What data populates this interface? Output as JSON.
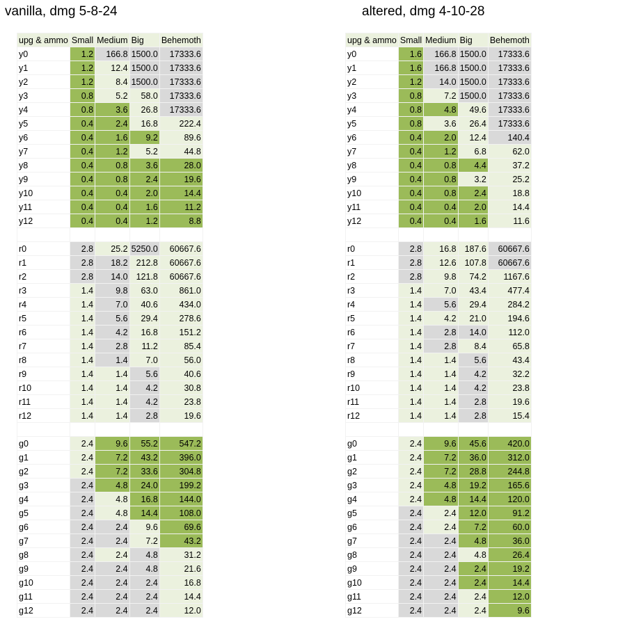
{
  "colors": {
    "G": "#9bbb59",
    "L": "#ebf1de",
    "D": "#d9d9d9",
    "W": "#ffffff"
  },
  "tables": [
    {
      "id": "vanilla",
      "title": "vanilla, dmg 5-8-24",
      "headers": [
        "upg & ammo",
        "Small",
        "Medium",
        "Big",
        "Behemoth"
      ],
      "rows": [
        {
          "label": "y0",
          "vals": [
            "1.2",
            "166.8",
            "1500.0",
            "17333.6"
          ],
          "c": "GDDD"
        },
        {
          "label": "y1",
          "vals": [
            "1.2",
            "12.4",
            "1500.0",
            "17333.6"
          ],
          "c": "GLDD"
        },
        {
          "label": "y2",
          "vals": [
            "1.2",
            "8.4",
            "1500.0",
            "17333.6"
          ],
          "c": "GLDD"
        },
        {
          "label": "y3",
          "vals": [
            "0.8",
            "5.2",
            "58.0",
            "17333.6"
          ],
          "c": "GLLD"
        },
        {
          "label": "y4",
          "vals": [
            "0.8",
            "3.6",
            "26.8",
            "17333.6"
          ],
          "c": "GGLD"
        },
        {
          "label": "y5",
          "vals": [
            "0.4",
            "2.4",
            "16.8",
            "222.4"
          ],
          "c": "GGLL"
        },
        {
          "label": "y6",
          "vals": [
            "0.4",
            "1.6",
            "9.2",
            "89.6"
          ],
          "c": "GGGL"
        },
        {
          "label": "y7",
          "vals": [
            "0.4",
            "1.2",
            "5.2",
            "44.8"
          ],
          "c": "GGLL"
        },
        {
          "label": "y8",
          "vals": [
            "0.4",
            "0.8",
            "3.6",
            "28.0"
          ],
          "c": "GGGG"
        },
        {
          "label": "y9",
          "vals": [
            "0.4",
            "0.8",
            "2.4",
            "19.6"
          ],
          "c": "GGGG"
        },
        {
          "label": "y10",
          "vals": [
            "0.4",
            "0.4",
            "2.0",
            "14.4"
          ],
          "c": "GGGG"
        },
        {
          "label": "y11",
          "vals": [
            "0.4",
            "0.4",
            "1.6",
            "11.2"
          ],
          "c": "GGGG"
        },
        {
          "label": "y12",
          "vals": [
            "0.4",
            "0.4",
            "1.2",
            "8.8"
          ],
          "c": "GGGG"
        },
        null,
        {
          "label": "r0",
          "vals": [
            "2.8",
            "25.2",
            "5250.0",
            "60667.6"
          ],
          "c": "DLDL"
        },
        {
          "label": "r1",
          "vals": [
            "2.8",
            "18.2",
            "212.8",
            "60667.6"
          ],
          "c": "DDLL"
        },
        {
          "label": "r2",
          "vals": [
            "2.8",
            "14.0",
            "121.8",
            "60667.6"
          ],
          "c": "DDLL"
        },
        {
          "label": "r3",
          "vals": [
            "1.4",
            "9.8",
            "63.0",
            "861.0"
          ],
          "c": "LDLL"
        },
        {
          "label": "r4",
          "vals": [
            "1.4",
            "7.0",
            "40.6",
            "434.0"
          ],
          "c": "LDLL"
        },
        {
          "label": "r5",
          "vals": [
            "1.4",
            "5.6",
            "29.4",
            "278.6"
          ],
          "c": "LDLL"
        },
        {
          "label": "r6",
          "vals": [
            "1.4",
            "4.2",
            "16.8",
            "151.2"
          ],
          "c": "LDLL"
        },
        {
          "label": "r7",
          "vals": [
            "1.4",
            "2.8",
            "11.2",
            "85.4"
          ],
          "c": "LDLL"
        },
        {
          "label": "r8",
          "vals": [
            "1.4",
            "1.4",
            "7.0",
            "56.0"
          ],
          "c": "LDLL"
        },
        {
          "label": "r9",
          "vals": [
            "1.4",
            "1.4",
            "5.6",
            "40.6"
          ],
          "c": "LLDL"
        },
        {
          "label": "r10",
          "vals": [
            "1.4",
            "1.4",
            "4.2",
            "30.8"
          ],
          "c": "LLDL"
        },
        {
          "label": "r11",
          "vals": [
            "1.4",
            "1.4",
            "4.2",
            "23.8"
          ],
          "c": "LLDL"
        },
        {
          "label": "r12",
          "vals": [
            "1.4",
            "1.4",
            "2.8",
            "19.6"
          ],
          "c": "LLDL"
        },
        null,
        {
          "label": "g0",
          "vals": [
            "2.4",
            "9.6",
            "55.2",
            "547.2"
          ],
          "c": "LGGG"
        },
        {
          "label": "g1",
          "vals": [
            "2.4",
            "7.2",
            "43.2",
            "396.0"
          ],
          "c": "LGGG"
        },
        {
          "label": "g2",
          "vals": [
            "2.4",
            "7.2",
            "33.6",
            "304.8"
          ],
          "c": "LGGG"
        },
        {
          "label": "g3",
          "vals": [
            "2.4",
            "4.8",
            "24.0",
            "199.2"
          ],
          "c": "DGGG"
        },
        {
          "label": "g4",
          "vals": [
            "2.4",
            "4.8",
            "16.8",
            "144.0"
          ],
          "c": "DLGG"
        },
        {
          "label": "g5",
          "vals": [
            "2.4",
            "4.8",
            "14.4",
            "108.0"
          ],
          "c": "DLGG"
        },
        {
          "label": "g6",
          "vals": [
            "2.4",
            "2.4",
            "9.6",
            "69.6"
          ],
          "c": "DDLG"
        },
        {
          "label": "g7",
          "vals": [
            "2.4",
            "2.4",
            "7.2",
            "43.2"
          ],
          "c": "DDLG"
        },
        {
          "label": "g8",
          "vals": [
            "2.4",
            "2.4",
            "4.8",
            "31.2"
          ],
          "c": "DLDL"
        },
        {
          "label": "g9",
          "vals": [
            "2.4",
            "2.4",
            "4.8",
            "21.6"
          ],
          "c": "DDDL"
        },
        {
          "label": "g10",
          "vals": [
            "2.4",
            "2.4",
            "2.4",
            "16.8"
          ],
          "c": "DDDL"
        },
        {
          "label": "g11",
          "vals": [
            "2.4",
            "2.4",
            "2.4",
            "14.4"
          ],
          "c": "DDDL"
        },
        {
          "label": "g12",
          "vals": [
            "2.4",
            "2.4",
            "2.4",
            "12.0"
          ],
          "c": "DDDL"
        }
      ]
    },
    {
      "id": "altered",
      "title": "altered, dmg 4-10-28",
      "headers": [
        "upg & ammo",
        "Small",
        "Medium",
        "Big",
        "Behemoth"
      ],
      "rows": [
        {
          "label": "y0",
          "vals": [
            "1.6",
            "166.8",
            "1500.0",
            "17333.6"
          ],
          "c": "GDDD"
        },
        {
          "label": "y1",
          "vals": [
            "1.6",
            "166.8",
            "1500.0",
            "17333.6"
          ],
          "c": "GDDD"
        },
        {
          "label": "y2",
          "vals": [
            "1.2",
            "14.0",
            "1500.0",
            "17333.6"
          ],
          "c": "GDDD"
        },
        {
          "label": "y3",
          "vals": [
            "0.8",
            "7.2",
            "1500.0",
            "17333.6"
          ],
          "c": "GLDD"
        },
        {
          "label": "y4",
          "vals": [
            "0.8",
            "4.8",
            "49.6",
            "17333.6"
          ],
          "c": "GGLD"
        },
        {
          "label": "y5",
          "vals": [
            "0.8",
            "3.6",
            "26.4",
            "17333.6"
          ],
          "c": "GLLD"
        },
        {
          "label": "y6",
          "vals": [
            "0.4",
            "2.0",
            "12.4",
            "140.4"
          ],
          "c": "GGLD"
        },
        {
          "label": "y7",
          "vals": [
            "0.4",
            "1.2",
            "6.8",
            "62.0"
          ],
          "c": "GGLL"
        },
        {
          "label": "y8",
          "vals": [
            "0.4",
            "0.8",
            "4.4",
            "37.2"
          ],
          "c": "GGGL"
        },
        {
          "label": "y9",
          "vals": [
            "0.4",
            "0.8",
            "3.2",
            "25.2"
          ],
          "c": "GGLL"
        },
        {
          "label": "y10",
          "vals": [
            "0.4",
            "0.8",
            "2.4",
            "18.8"
          ],
          "c": "GGGL"
        },
        {
          "label": "y11",
          "vals": [
            "0.4",
            "0.4",
            "2.0",
            "14.4"
          ],
          "c": "GGGL"
        },
        {
          "label": "y12",
          "vals": [
            "0.4",
            "0.4",
            "1.6",
            "11.6"
          ],
          "c": "GGGL"
        },
        null,
        {
          "label": "r0",
          "vals": [
            "2.8",
            "16.8",
            "187.6",
            "60667.6"
          ],
          "c": "DLLD"
        },
        {
          "label": "r1",
          "vals": [
            "2.8",
            "12.6",
            "107.8",
            "60667.6"
          ],
          "c": "DLLD"
        },
        {
          "label": "r2",
          "vals": [
            "2.8",
            "9.8",
            "74.2",
            "1167.6"
          ],
          "c": "DLLL"
        },
        {
          "label": "r3",
          "vals": [
            "1.4",
            "7.0",
            "43.4",
            "477.4"
          ],
          "c": "LLLL"
        },
        {
          "label": "r4",
          "vals": [
            "1.4",
            "5.6",
            "29.4",
            "284.2"
          ],
          "c": "LDLL"
        },
        {
          "label": "r5",
          "vals": [
            "1.4",
            "4.2",
            "21.0",
            "194.6"
          ],
          "c": "LLLL"
        },
        {
          "label": "r6",
          "vals": [
            "1.4",
            "2.8",
            "14.0",
            "112.0"
          ],
          "c": "LDDL"
        },
        {
          "label": "r7",
          "vals": [
            "1.4",
            "2.8",
            "8.4",
            "65.8"
          ],
          "c": "LDLL"
        },
        {
          "label": "r8",
          "vals": [
            "1.4",
            "1.4",
            "5.6",
            "43.4"
          ],
          "c": "LLDL"
        },
        {
          "label": "r9",
          "vals": [
            "1.4",
            "1.4",
            "4.2",
            "32.2"
          ],
          "c": "LLDL"
        },
        {
          "label": "r10",
          "vals": [
            "1.4",
            "1.4",
            "4.2",
            "23.8"
          ],
          "c": "LLDL"
        },
        {
          "label": "r11",
          "vals": [
            "1.4",
            "1.4",
            "2.8",
            "19.6"
          ],
          "c": "LLDL"
        },
        {
          "label": "r12",
          "vals": [
            "1.4",
            "1.4",
            "2.8",
            "15.4"
          ],
          "c": "LLDL"
        },
        null,
        {
          "label": "g0",
          "vals": [
            "2.4",
            "9.6",
            "45.6",
            "420.0"
          ],
          "c": "LGGG"
        },
        {
          "label": "g1",
          "vals": [
            "2.4",
            "7.2",
            "36.0",
            "312.0"
          ],
          "c": "LGGG"
        },
        {
          "label": "g2",
          "vals": [
            "2.4",
            "7.2",
            "28.8",
            "244.8"
          ],
          "c": "LGGG"
        },
        {
          "label": "g3",
          "vals": [
            "2.4",
            "4.8",
            "19.2",
            "165.6"
          ],
          "c": "LGGG"
        },
        {
          "label": "g4",
          "vals": [
            "2.4",
            "4.8",
            "14.4",
            "120.0"
          ],
          "c": "LGGG"
        },
        {
          "label": "g5",
          "vals": [
            "2.4",
            "2.4",
            "12.0",
            "91.2"
          ],
          "c": "DLGG"
        },
        {
          "label": "g6",
          "vals": [
            "2.4",
            "2.4",
            "7.2",
            "60.0"
          ],
          "c": "DLGG"
        },
        {
          "label": "g7",
          "vals": [
            "2.4",
            "2.4",
            "4.8",
            "36.0"
          ],
          "c": "DDGG"
        },
        {
          "label": "g8",
          "vals": [
            "2.4",
            "2.4",
            "4.8",
            "26.4"
          ],
          "c": "DDLG"
        },
        {
          "label": "g9",
          "vals": [
            "2.4",
            "2.4",
            "2.4",
            "19.2"
          ],
          "c": "DDGG"
        },
        {
          "label": "g10",
          "vals": [
            "2.4",
            "2.4",
            "2.4",
            "14.4"
          ],
          "c": "DDGG"
        },
        {
          "label": "g11",
          "vals": [
            "2.4",
            "2.4",
            "2.4",
            "12.0"
          ],
          "c": "DDLG"
        },
        {
          "label": "g12",
          "vals": [
            "2.4",
            "2.4",
            "2.4",
            "9.6"
          ],
          "c": "DDLG"
        }
      ]
    }
  ]
}
